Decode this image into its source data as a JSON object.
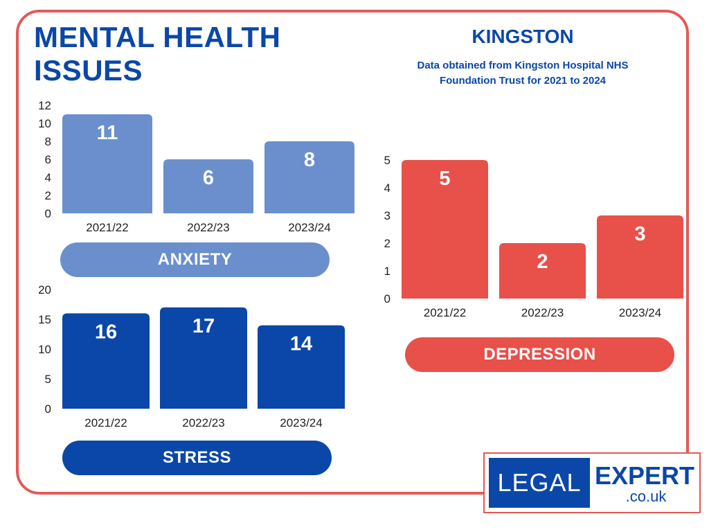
{
  "header": {
    "title": "MENTAL HEALTH ISSUES",
    "region": "KINGSTON",
    "source_note": "Data obtained from Kingston Hospital NHS Foundation Trust for 2021 to 2024"
  },
  "chart_data": [
    {
      "type": "bar",
      "name": "ANXIETY",
      "categories": [
        "2021/22",
        "2022/23",
        "2023/24"
      ],
      "values": [
        11,
        6,
        8
      ],
      "yticks": [
        0,
        2,
        4,
        6,
        8,
        10,
        12
      ],
      "ylim": [
        0,
        12
      ],
      "color": "#6a8fcc"
    },
    {
      "type": "bar",
      "name": "STRESS",
      "categories": [
        "2021/22",
        "2022/23",
        "2023/24"
      ],
      "values": [
        16,
        17,
        14
      ],
      "yticks": [
        0,
        5,
        10,
        15,
        20
      ],
      "ylim": [
        0,
        20
      ],
      "color": "#0a47a8"
    },
    {
      "type": "bar",
      "name": "DEPRESSION",
      "categories": [
        "2021/22",
        "2022/23",
        "2023/24"
      ],
      "values": [
        5,
        2,
        3
      ],
      "yticks": [
        0,
        1,
        2,
        3,
        4,
        5
      ],
      "ylim": [
        0,
        5
      ],
      "color": "#e8504a"
    }
  ],
  "logo": {
    "left_text": "LEGAL",
    "right_text": "EXPERT",
    "domain_text": ".co.uk"
  }
}
